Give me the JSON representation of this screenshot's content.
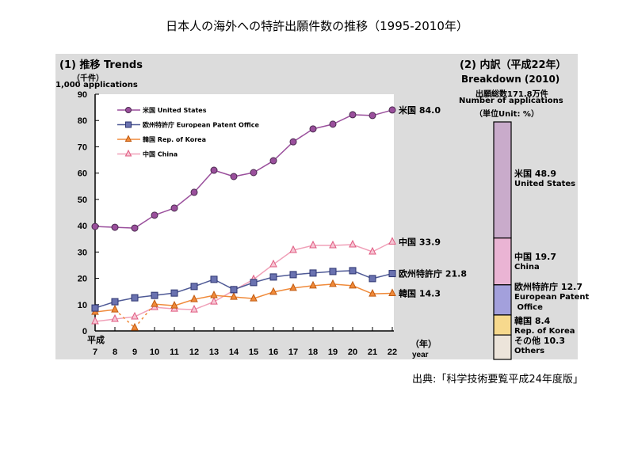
{
  "title": "日本人の海外への特許出願件数の推移（1995-2010年）",
  "source": "出典:「科学技術要覧平成24年度版」",
  "chart_data": [
    {
      "type": "line",
      "section_title": "(1)  推移  Trends",
      "ylabel_jp": "（千件）",
      "ylabel": "1,000 applications",
      "xlabel_era": "平成",
      "xlabel_jp": "（年）",
      "xlabel": "year",
      "x": [
        7,
        8,
        9,
        10,
        11,
        12,
        13,
        14,
        15,
        16,
        17,
        18,
        19,
        20,
        21,
        22
      ],
      "ylim": [
        0,
        90
      ],
      "yticks": [
        0,
        10,
        20,
        30,
        40,
        50,
        60,
        70,
        80,
        90
      ],
      "grid": false,
      "legend_position": "top-left",
      "series": [
        {
          "name": "米国 United States",
          "color": "#9a4f9c",
          "marker": "circle",
          "end_label": "米国 84.0",
          "values": [
            39.7,
            39.4,
            39.1,
            44.0,
            46.7,
            52.7,
            61.1,
            58.7,
            60.2,
            64.7,
            71.9,
            76.8,
            78.6,
            82.2,
            81.9,
            84.0
          ]
        },
        {
          "name": "欧州特許庁 European Patent Office",
          "color": "#4f5a96",
          "marker": "square",
          "end_label": "欧州特許庁 21.8",
          "values": [
            8.7,
            11.1,
            12.6,
            13.5,
            14.4,
            16.9,
            19.6,
            15.7,
            18.4,
            20.5,
            21.4,
            22.0,
            22.6,
            22.9,
            19.9,
            21.8
          ]
        },
        {
          "name": "韓国 Rep. of Korea",
          "color": "#f08a3a",
          "marker": "triangle",
          "end_label": "韓国 14.3",
          "dashed_segments": [
            [
              8,
              9
            ],
            [
              9,
              10
            ]
          ],
          "values": [
            7.2,
            8.1,
            1.2,
            10.2,
            9.6,
            12.0,
            13.5,
            12.9,
            12.3,
            14.8,
            16.3,
            17.2,
            17.8,
            17.2,
            14.1,
            14.3
          ]
        },
        {
          "name": "中国 China",
          "color": "#f0a0b8",
          "marker": "triangle-open",
          "end_label": "中国 33.9",
          "values": [
            3.6,
            4.5,
            5.4,
            9.0,
            8.4,
            8.1,
            11.1,
            15.4,
            19.6,
            25.3,
            30.7,
            32.5,
            32.5,
            32.8,
            30.1,
            33.9
          ]
        }
      ]
    },
    {
      "type": "bar",
      "stacked": true,
      "section_title": "(2)  内訳（平成22年）",
      "subtitle": "Breakdown (2010)",
      "total_label": "出願総数171.8万件",
      "total_label_en": "Number of applications",
      "unit": "（単位Unit: %）",
      "segments": [
        {
          "name_jp": "米国",
          "name_en": "United States",
          "value": 48.9,
          "color": "#c9abcb"
        },
        {
          "name_jp": "中国",
          "name_en": "China",
          "value": 19.7,
          "color": "#eab4d4"
        },
        {
          "name_jp": "欧州特許庁",
          "name_en": "European Patent Office",
          "value": 12.7,
          "color": "#a3a0dc"
        },
        {
          "name_jp": "韓国",
          "name_en": "Rep. of Korea",
          "value": 8.4,
          "color": "#f7d98d"
        },
        {
          "name_jp": "その他",
          "name_en": "Others",
          "value": 10.3,
          "color": "#ece4da"
        }
      ]
    }
  ]
}
